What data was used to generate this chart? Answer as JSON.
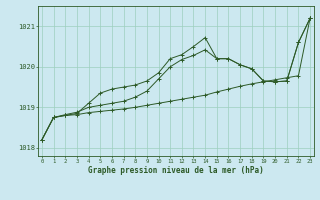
{
  "xlabel": "Graphe pression niveau de la mer (hPa)",
  "x": [
    0,
    1,
    2,
    3,
    4,
    5,
    6,
    7,
    8,
    9,
    10,
    11,
    12,
    13,
    14,
    15,
    16,
    17,
    18,
    19,
    20,
    21,
    22,
    23
  ],
  "line1": [
    1018.2,
    1018.75,
    1018.8,
    1018.82,
    1018.87,
    1018.9,
    1018.93,
    1018.96,
    1019.0,
    1019.05,
    1019.1,
    1019.15,
    1019.2,
    1019.25,
    1019.3,
    1019.38,
    1019.45,
    1019.52,
    1019.58,
    1019.63,
    1019.68,
    1019.73,
    1019.78,
    1021.2
  ],
  "line2": [
    1018.2,
    1018.75,
    1018.8,
    1018.85,
    1019.1,
    1019.35,
    1019.45,
    1019.5,
    1019.55,
    1019.65,
    1019.85,
    1020.2,
    1020.3,
    1020.5,
    1020.72,
    1020.2,
    1020.2,
    1020.05,
    1019.95,
    1019.65,
    1019.63,
    1019.65,
    1020.6,
    1021.2
  ],
  "line3": [
    1018.2,
    1018.75,
    1018.82,
    1018.88,
    1019.0,
    1019.05,
    1019.1,
    1019.15,
    1019.25,
    1019.4,
    1019.7,
    1020.0,
    1020.18,
    1020.28,
    1020.42,
    1020.2,
    1020.2,
    1020.05,
    1019.95,
    1019.65,
    1019.63,
    1019.65,
    1020.6,
    1021.2
  ],
  "ylim": [
    1017.8,
    1021.5
  ],
  "yticks": [
    1018,
    1019,
    1020,
    1021
  ],
  "bg_color": "#cce8f0",
  "line_color": "#2d5a27",
  "grid_color": "#9ecfbe",
  "label_color": "#2d5a27"
}
